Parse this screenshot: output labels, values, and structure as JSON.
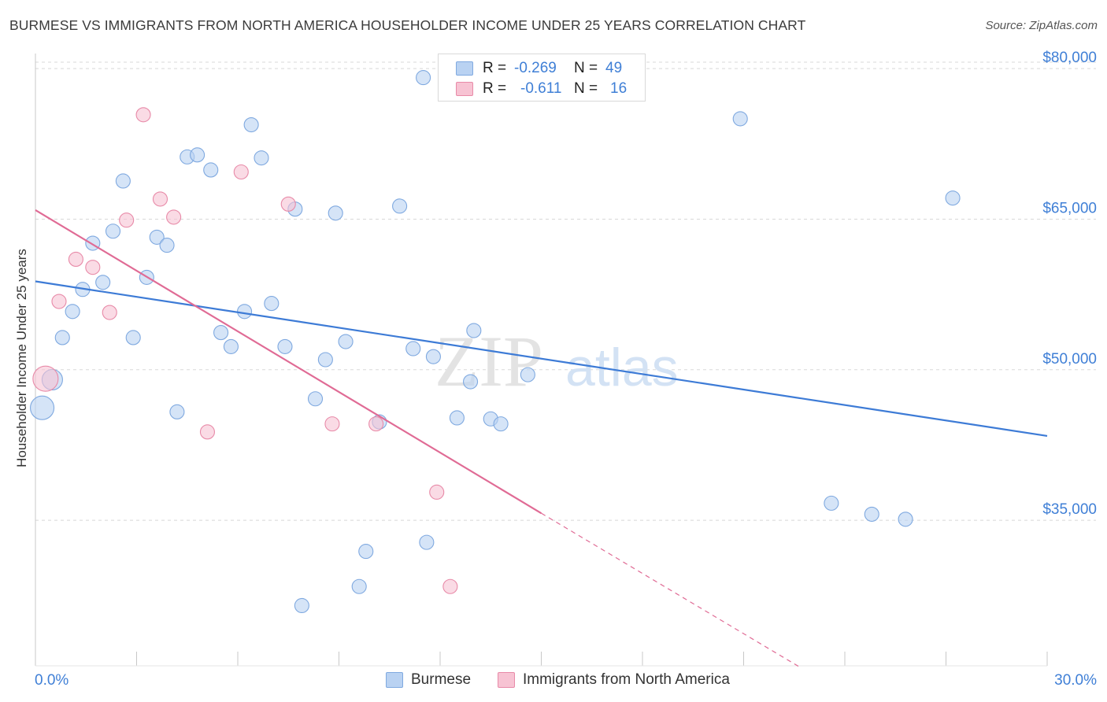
{
  "title": "BURMESE VS IMMIGRANTS FROM NORTH AMERICA HOUSEHOLDER INCOME UNDER 25 YEARS CORRELATION CHART",
  "source": "Source: ZipAtlas.com",
  "watermark": {
    "zip": "ZIP",
    "atlas": "atlas"
  },
  "colors": {
    "blue_fill": "#b9d2f2",
    "blue_stroke": "#7fa9e0",
    "blue_line": "#3d7bd6",
    "pink_fill": "#f7c3d3",
    "pink_stroke": "#e88aa8",
    "pink_line": "#e06b95",
    "tick_label": "#3f7fd6",
    "grid": "#d8d8d8"
  },
  "legend": {
    "r_label": "R =",
    "n_label": "N =",
    "rows": [
      {
        "series": "Burmese",
        "r": "-0.269",
        "n": "49"
      },
      {
        "series": "Immigrants from North America",
        "r": "-0.611",
        "n": "16"
      }
    ]
  },
  "chart_data": {
    "type": "scatter",
    "title": "BURMESE VS IMMIGRANTS FROM NORTH AMERICA HOUSEHOLDER INCOME UNDER 25 YEARS CORRELATION CHART",
    "xlabel": "",
    "ylabel": "Householder Income Under 25 years",
    "xlim": [
      0,
      30
    ],
    "ylim": [
      20500,
      81500
    ],
    "x_tick_labels": [
      "0.0%",
      "30.0%"
    ],
    "y_ticks": [
      35000,
      50000,
      65000,
      80000
    ],
    "y_tick_labels": [
      "$35,000",
      "$50,000",
      "$65,000",
      "$80,000"
    ],
    "grid": true,
    "legend_position": "top-center",
    "series": [
      {
        "name": "Burmese",
        "points": [
          [
            0.2,
            46200
          ],
          [
            0.5,
            49000
          ],
          [
            0.8,
            53200
          ],
          [
            1.1,
            55800
          ],
          [
            1.4,
            58000
          ],
          [
            1.7,
            62600
          ],
          [
            2.0,
            58700
          ],
          [
            2.3,
            63800
          ],
          [
            2.6,
            68800
          ],
          [
            2.9,
            53200
          ],
          [
            3.3,
            59200
          ],
          [
            3.6,
            63200
          ],
          [
            3.9,
            62400
          ],
          [
            4.2,
            45800
          ],
          [
            4.5,
            71200
          ],
          [
            4.8,
            71400
          ],
          [
            5.2,
            69900
          ],
          [
            5.5,
            53700
          ],
          [
            5.8,
            52300
          ],
          [
            6.2,
            55800
          ],
          [
            6.4,
            74400
          ],
          [
            6.7,
            71100
          ],
          [
            7.0,
            56600
          ],
          [
            7.4,
            52300
          ],
          [
            7.7,
            66000
          ],
          [
            7.9,
            26500
          ],
          [
            8.3,
            47100
          ],
          [
            8.6,
            51000
          ],
          [
            8.9,
            65600
          ],
          [
            9.2,
            52800
          ],
          [
            9.6,
            28400
          ],
          [
            9.8,
            31900
          ],
          [
            10.2,
            44800
          ],
          [
            10.8,
            66300
          ],
          [
            11.2,
            52100
          ],
          [
            11.5,
            79100
          ],
          [
            11.6,
            32800
          ],
          [
            11.8,
            51300
          ],
          [
            12.5,
            45200
          ],
          [
            12.9,
            48800
          ],
          [
            13.0,
            53900
          ],
          [
            13.5,
            45100
          ],
          [
            13.8,
            44600
          ],
          [
            14.6,
            49500
          ],
          [
            20.9,
            75000
          ],
          [
            23.6,
            36700
          ],
          [
            24.8,
            35600
          ],
          [
            25.8,
            35100
          ],
          [
            27.2,
            67100
          ]
        ],
        "sizes": {
          "0": 15,
          "1": 13
        },
        "trend": {
          "x": [
            0,
            30
          ],
          "y": [
            58800,
            43400
          ]
        }
      },
      {
        "name": "Immigrants from North America",
        "points": [
          [
            0.3,
            49100
          ],
          [
            0.7,
            56800
          ],
          [
            1.2,
            61000
          ],
          [
            1.7,
            60200
          ],
          [
            2.2,
            55700
          ],
          [
            2.7,
            64900
          ],
          [
            3.2,
            75400
          ],
          [
            3.7,
            67000
          ],
          [
            4.1,
            65200
          ],
          [
            5.1,
            43800
          ],
          [
            6.1,
            69700
          ],
          [
            7.5,
            66500
          ],
          [
            8.8,
            44600
          ],
          [
            10.1,
            44600
          ],
          [
            11.9,
            37800
          ],
          [
            12.3,
            28400
          ]
        ],
        "sizes": {
          "0": 16
        },
        "trend": {
          "x": [
            0,
            15
          ],
          "y": [
            65900,
            35700
          ]
        },
        "trend_dashed": {
          "x": [
            15,
            22.7
          ],
          "y": [
            35700,
            20300
          ]
        }
      }
    ]
  }
}
